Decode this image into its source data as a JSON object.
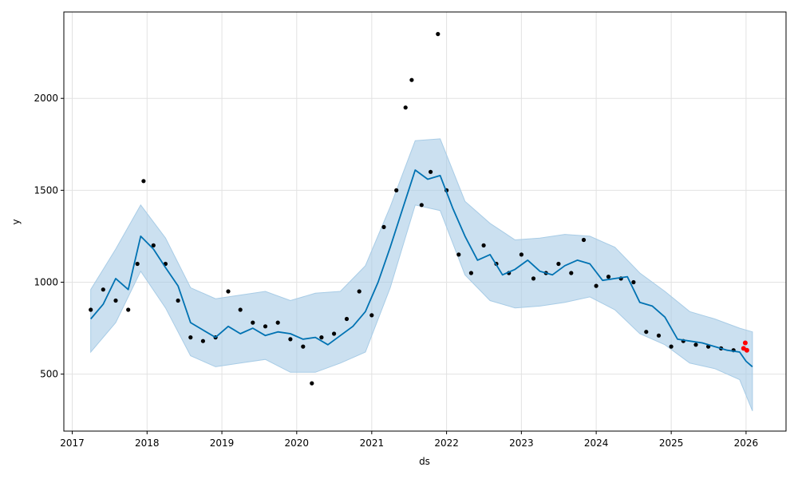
{
  "chart_data": {
    "type": "line",
    "title": "",
    "xlabel": "ds",
    "ylabel": "y",
    "xlim": [
      "2016-11-21",
      "2026-07-15"
    ],
    "ylim": [
      190,
      2470
    ],
    "x_ticks": [
      "2017",
      "2018",
      "2019",
      "2020",
      "2021",
      "2022",
      "2023",
      "2024",
      "2025",
      "2026"
    ],
    "y_ticks": [
      500,
      1000,
      1500,
      2000
    ],
    "grid": true,
    "legend": "none",
    "colors": {
      "forecast_line": "#0072B2",
      "uncertainty_band": "#a8cce6",
      "actual_points": "#000000",
      "recent_points": "#ff0000",
      "grid": "#e2e2e2"
    },
    "series": [
      {
        "role": "forecast",
        "x": [
          "2017-04-01",
          "2017-06-01",
          "2017-08-01",
          "2017-10-01",
          "2017-12-01",
          "2018-02-01",
          "2018-04-01",
          "2018-06-01",
          "2018-08-01",
          "2018-10-01",
          "2018-12-01",
          "2019-02-01",
          "2019-04-01",
          "2019-06-01",
          "2019-08-01",
          "2019-10-01",
          "2019-12-01",
          "2020-02-01",
          "2020-04-01",
          "2020-06-01",
          "2020-08-01",
          "2020-10-01",
          "2020-12-01",
          "2021-02-01",
          "2021-04-01",
          "2021-06-01",
          "2021-08-01",
          "2021-10-01",
          "2021-12-01",
          "2022-02-01",
          "2022-04-01",
          "2022-06-01",
          "2022-08-01",
          "2022-10-01",
          "2022-12-01",
          "2023-02-01",
          "2023-04-01",
          "2023-06-01",
          "2023-08-01",
          "2023-10-01",
          "2023-12-01",
          "2024-02-01",
          "2024-04-01",
          "2024-06-01",
          "2024-08-01",
          "2024-10-01",
          "2024-12-01",
          "2025-02-01",
          "2025-04-01",
          "2025-06-01",
          "2025-08-01",
          "2025-10-01",
          "2025-12-01",
          "2026-01-01",
          "2026-02-01"
        ],
        "y": [
          800,
          880,
          1020,
          960,
          1250,
          1180,
          1080,
          980,
          780,
          740,
          700,
          760,
          720,
          750,
          710,
          730,
          720,
          690,
          700,
          660,
          710,
          760,
          840,
          1000,
          1190,
          1400,
          1610,
          1560,
          1580,
          1400,
          1250,
          1120,
          1150,
          1040,
          1070,
          1120,
          1060,
          1040,
          1090,
          1120,
          1100,
          1010,
          1020,
          1030,
          890,
          870,
          810,
          690,
          680,
          670,
          650,
          630,
          620,
          570,
          540
        ]
      },
      {
        "role": "uncertainty",
        "x": [
          "2017-04-01",
          "2017-08-01",
          "2017-12-01",
          "2018-04-01",
          "2018-08-01",
          "2018-12-01",
          "2019-04-01",
          "2019-08-01",
          "2019-12-01",
          "2020-04-01",
          "2020-08-01",
          "2020-12-01",
          "2021-04-01",
          "2021-08-01",
          "2021-12-01",
          "2022-04-01",
          "2022-08-01",
          "2022-12-01",
          "2023-04-01",
          "2023-08-01",
          "2023-12-01",
          "2024-04-01",
          "2024-08-01",
          "2024-12-01",
          "2025-04-01",
          "2025-08-01",
          "2025-12-01",
          "2026-02-01"
        ],
        "upper": [
          960,
          1180,
          1420,
          1240,
          970,
          910,
          930,
          950,
          900,
          940,
          950,
          1090,
          1410,
          1770,
          1780,
          1440,
          1320,
          1230,
          1240,
          1260,
          1250,
          1190,
          1050,
          950,
          840,
          800,
          750,
          730
        ],
        "lower": [
          620,
          780,
          1060,
          860,
          600,
          540,
          560,
          580,
          510,
          510,
          560,
          620,
          970,
          1420,
          1390,
          1040,
          900,
          860,
          870,
          890,
          920,
          850,
          720,
          660,
          560,
          530,
          470,
          300
        ]
      },
      {
        "role": "actual",
        "x": [
          "2017-04-01",
          "2017-06-01",
          "2017-08-01",
          "2017-10-01",
          "2017-11-15",
          "2017-12-15",
          "2018-02-01",
          "2018-04-01",
          "2018-06-01",
          "2018-08-01",
          "2018-10-01",
          "2018-12-01",
          "2019-02-01",
          "2019-04-01",
          "2019-06-01",
          "2019-08-01",
          "2019-10-01",
          "2019-12-01",
          "2020-02-01",
          "2020-03-15",
          "2020-05-01",
          "2020-07-01",
          "2020-09-01",
          "2020-11-01",
          "2021-01-01",
          "2021-03-01",
          "2021-05-01",
          "2021-06-15",
          "2021-07-15",
          "2021-09-01",
          "2021-10-15",
          "2021-11-20",
          "2022-01-01",
          "2022-03-01",
          "2022-05-01",
          "2022-07-01",
          "2022-09-01",
          "2022-11-01",
          "2023-01-01",
          "2023-03-01",
          "2023-05-01",
          "2023-07-01",
          "2023-09-01",
          "2023-11-01",
          "2024-01-01",
          "2024-03-01",
          "2024-05-01",
          "2024-07-01",
          "2024-09-01",
          "2024-11-01",
          "2025-01-01",
          "2025-03-01",
          "2025-05-01",
          "2025-07-01",
          "2025-09-01",
          "2025-11-01"
        ],
        "y": [
          850,
          960,
          900,
          850,
          1100,
          1550,
          1200,
          1100,
          900,
          700,
          680,
          700,
          950,
          850,
          780,
          760,
          780,
          690,
          650,
          450,
          700,
          720,
          800,
          950,
          820,
          1300,
          1500,
          1950,
          2100,
          1420,
          1600,
          2350,
          1500,
          1150,
          1050,
          1200,
          1100,
          1050,
          1150,
          1020,
          1050,
          1100,
          1050,
          1230,
          980,
          1030,
          1020,
          1000,
          730,
          710,
          650,
          680,
          660,
          650,
          640,
          630
        ]
      },
      {
        "role": "recent",
        "x": [
          "2025-12-20",
          "2025-12-28",
          "2026-01-05"
        ],
        "y": [
          640,
          670,
          630
        ]
      }
    ]
  }
}
